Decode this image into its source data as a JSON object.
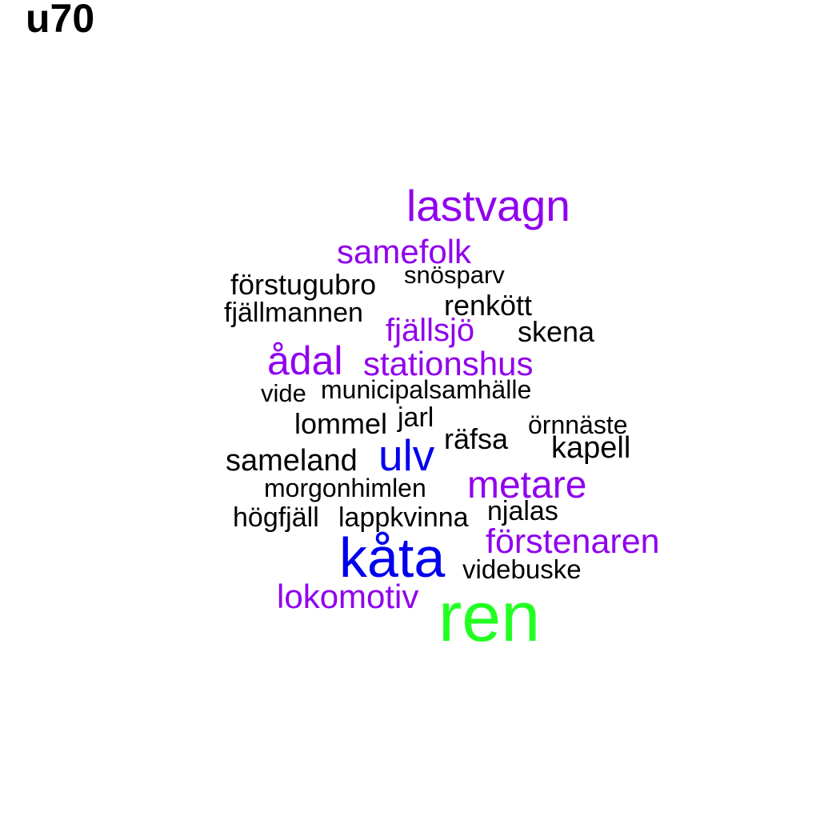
{
  "title": "u70",
  "words": {
    "lastvagn": "lastvagn",
    "samefolk": "samefolk",
    "forstugubro": "förstugubro",
    "snosparv": "snösparv",
    "renkott": "renkött",
    "fjallmannen": "fjällmannen",
    "fjallsjo": "fjällsjö",
    "skena": "skena",
    "adal": "ådal",
    "stationshus": "stationshus",
    "vide": "vide",
    "municipalsamhalle": "municipalsamhälle",
    "lommel": "lommel",
    "jarl": "jarl",
    "ornnaste": "örnnäste",
    "rafsa": "räfsa",
    "kapell": "kapell",
    "sameland": "sameland",
    "ulv": "ulv",
    "morgonhimlen": "morgonhimlen",
    "metare": "metare",
    "hogfjall": "högfjäll",
    "lappkvinna": "lappkvinna",
    "njalas": "njalas",
    "forstenaren": "förstenaren",
    "kata": "kåta",
    "videbuske": "videbuske",
    "lokomotiv": "lokomotiv",
    "ren": "ren"
  },
  "colors": {
    "black": "#000000",
    "purple": "#9000ee",
    "blue": "#0000ee",
    "green": "#22ff22"
  }
}
